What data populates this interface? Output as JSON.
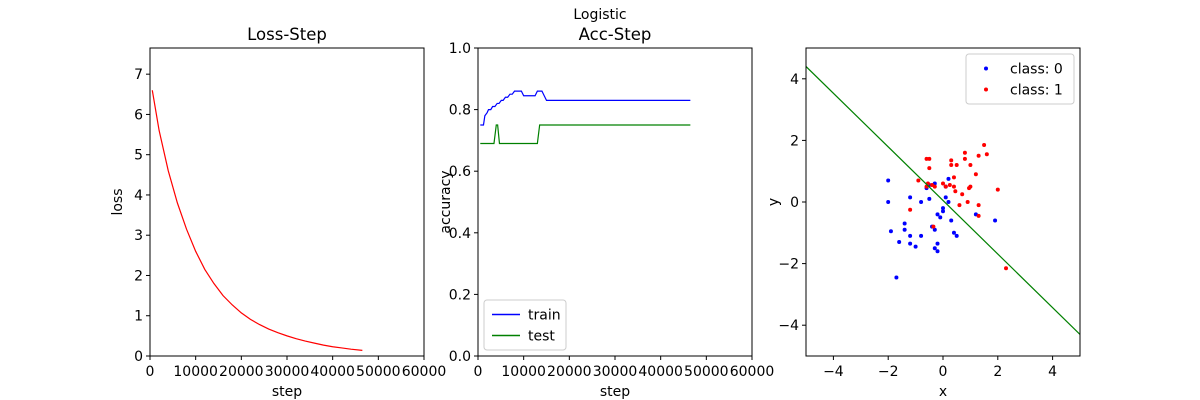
{
  "suptitle": "Logistic",
  "chart_data": [
    {
      "type": "line",
      "title": "Loss-Step",
      "xlabel": "step",
      "ylabel": "loss",
      "xlim": [
        0,
        60000
      ],
      "ylim": [
        0,
        7.65
      ],
      "xticks": [
        0,
        10000,
        20000,
        30000,
        40000,
        50000,
        60000
      ],
      "yticks": [
        0,
        1,
        2,
        3,
        4,
        5,
        6,
        7
      ],
      "grid": false,
      "series": [
        {
          "color": "#ff0000",
          "x": [
            500,
            2000,
            4000,
            6000,
            8000,
            10000,
            12000,
            14000,
            16000,
            18000,
            20000,
            22000,
            24000,
            26000,
            28000,
            30000,
            32000,
            34000,
            36000,
            38000,
            40000,
            42000,
            44000,
            46500
          ],
          "y": [
            6.6,
            5.6,
            4.6,
            3.8,
            3.15,
            2.6,
            2.15,
            1.8,
            1.5,
            1.27,
            1.07,
            0.91,
            0.78,
            0.67,
            0.58,
            0.5,
            0.43,
            0.37,
            0.32,
            0.27,
            0.23,
            0.2,
            0.17,
            0.14
          ]
        }
      ]
    },
    {
      "type": "line",
      "title": "Acc-Step",
      "xlabel": "step",
      "ylabel": "accuracy",
      "xlim": [
        0,
        60000
      ],
      "ylim": [
        0,
        1.0
      ],
      "xticks": [
        0,
        10000,
        20000,
        30000,
        40000,
        50000,
        60000
      ],
      "yticks": [
        0.0,
        0.2,
        0.4,
        0.6,
        0.8,
        1.0
      ],
      "grid": false,
      "legend_position": "lower-left",
      "series": [
        {
          "name": "train",
          "color": "#0000ff",
          "x": [
            500,
            1200,
            1500,
            2000,
            2300,
            2800,
            3200,
            3700,
            4200,
            4600,
            5100,
            5500,
            6000,
            6500,
            7000,
            7500,
            8000,
            8500,
            9500,
            10000,
            12500,
            13000,
            14000,
            14500,
            15000,
            46500
          ],
          "y": [
            0.75,
            0.75,
            0.78,
            0.79,
            0.8,
            0.8,
            0.81,
            0.81,
            0.82,
            0.82,
            0.83,
            0.83,
            0.84,
            0.84,
            0.85,
            0.85,
            0.86,
            0.86,
            0.86,
            0.845,
            0.845,
            0.86,
            0.86,
            0.845,
            0.83,
            0.83
          ]
        },
        {
          "name": "test",
          "color": "#008000",
          "x": [
            500,
            3500,
            4000,
            4300,
            4700,
            13000,
            13500,
            46500
          ],
          "y": [
            0.69,
            0.69,
            0.75,
            0.75,
            0.69,
            0.69,
            0.75,
            0.75
          ]
        }
      ]
    },
    {
      "type": "scatter",
      "xlabel": "x",
      "ylabel": "y",
      "xlim": [
        -5,
        5
      ],
      "ylim": [
        -5,
        5
      ],
      "xticks": [
        -4,
        -2,
        0,
        2,
        4
      ],
      "yticks": [
        -4,
        -2,
        0,
        2,
        4
      ],
      "grid": false,
      "legend_position": "top-right",
      "series": [
        {
          "name": "class: 0",
          "color": "#0000ff",
          "points": [
            [
              -2.0,
              0.7
            ],
            [
              -2.0,
              0.0
            ],
            [
              -1.9,
              -0.95
            ],
            [
              -1.6,
              -1.3
            ],
            [
              -1.7,
              -2.45
            ],
            [
              -1.4,
              -0.7
            ],
            [
              -1.4,
              -0.9
            ],
            [
              -1.2,
              -1.1
            ],
            [
              -1.2,
              -1.35
            ],
            [
              -1.0,
              -1.45
            ],
            [
              -0.8,
              -1.1
            ],
            [
              -0.8,
              0.0
            ],
            [
              -0.6,
              0.45
            ],
            [
              -0.5,
              0.55
            ],
            [
              -0.5,
              0.1
            ],
            [
              -0.4,
              -0.8
            ],
            [
              -0.3,
              -0.9
            ],
            [
              -0.3,
              -1.5
            ],
            [
              -0.2,
              -1.6
            ],
            [
              -0.1,
              -0.5
            ],
            [
              0.0,
              -0.3
            ],
            [
              0.0,
              -0.2
            ],
            [
              0.1,
              0.15
            ],
            [
              0.2,
              0.0
            ],
            [
              0.3,
              -0.6
            ],
            [
              0.4,
              -1.0
            ],
            [
              0.5,
              -1.1
            ],
            [
              -0.3,
              0.6
            ],
            [
              0.2,
              0.75
            ],
            [
              1.9,
              -0.6
            ],
            [
              -0.2,
              -0.4
            ],
            [
              1.2,
              -0.4
            ],
            [
              -1.2,
              0.15
            ],
            [
              -0.2,
              -1.35
            ],
            [
              0.1,
              0.5
            ]
          ]
        },
        {
          "name": "class: 1",
          "color": "#ff0000",
          "points": [
            [
              -1.2,
              -0.25
            ],
            [
              -0.9,
              0.7
            ],
            [
              -0.5,
              1.4
            ],
            [
              -0.6,
              1.4
            ],
            [
              -0.5,
              1.1
            ],
            [
              -0.6,
              0.5
            ],
            [
              -0.4,
              0.55
            ],
            [
              -0.3,
              0.5
            ],
            [
              0.0,
              0.6
            ],
            [
              0.1,
              0.5
            ],
            [
              0.3,
              1.2
            ],
            [
              0.3,
              1.35
            ],
            [
              0.4,
              0.8
            ],
            [
              0.4,
              0.5
            ],
            [
              0.5,
              1.2
            ],
            [
              0.6,
              -0.1
            ],
            [
              0.8,
              1.6
            ],
            [
              0.8,
              1.4
            ],
            [
              0.7,
              0.25
            ],
            [
              1.0,
              0.5
            ],
            [
              1.0,
              1.2
            ],
            [
              1.2,
              0.9
            ],
            [
              1.3,
              1.5
            ],
            [
              1.5,
              1.85
            ],
            [
              1.6,
              1.55
            ],
            [
              1.3,
              -0.1
            ],
            [
              1.3,
              -0.45
            ],
            [
              2.0,
              0.4
            ],
            [
              2.3,
              -2.15
            ],
            [
              0.9,
              0.0
            ],
            [
              0.25,
              0.55
            ],
            [
              0.45,
              0.35
            ],
            [
              -0.35,
              -0.8
            ],
            [
              -0.55,
              0.6
            ],
            [
              0.95,
              0.45
            ]
          ]
        },
        {
          "color": "#008000",
          "line": [
            [
              -5,
              4.4
            ],
            [
              5,
              -4.3
            ]
          ]
        }
      ]
    }
  ]
}
